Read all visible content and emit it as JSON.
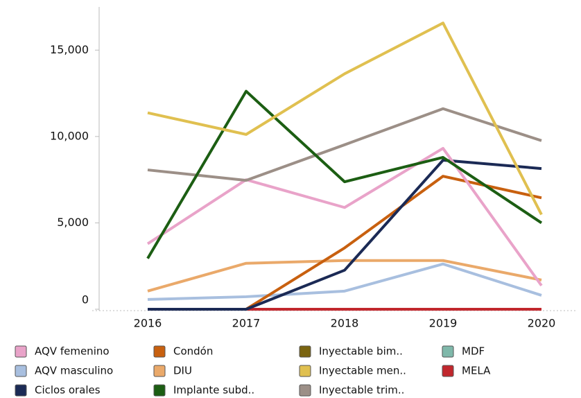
{
  "chart_data": {
    "type": "line",
    "categories": [
      "2016",
      "2017",
      "2018",
      "2019",
      "2020"
    ],
    "ylim": [
      0,
      17500
    ],
    "yticks": [
      0,
      {
        "value": 5000,
        "label": "5,000"
      },
      {
        "value": 10000,
        "label": "10,000"
      },
      {
        "value": 15000,
        "label": "15,000"
      }
    ],
    "series": [
      {
        "name": "AQV femenino",
        "color": "#e9a3c9",
        "values": [
          3790,
          7500,
          5890,
          9315,
          1370
        ]
      },
      {
        "name": "AQV masculino",
        "color": "#a8bfdf",
        "values": [
          565,
          725,
          1050,
          2620,
          805
        ]
      },
      {
        "name": "Ciclos orales",
        "color": "#1b2a55",
        "values": [
          0,
          0,
          2260,
          8630,
          8145
        ]
      },
      {
        "name": "Condón",
        "color": "#c8600f",
        "values": [
          0,
          0,
          3550,
          7700,
          6450
        ]
      },
      {
        "name": "DIU",
        "color": "#eaa96a",
        "values": [
          1050,
          2660,
          2820,
          2820,
          1690
        ]
      },
      {
        "name": "Implante subd..",
        "color": "#1c5e13",
        "values": [
          2940,
          12620,
          7380,
          8790,
          5000
        ]
      },
      {
        "name": "Inyectable bim..",
        "color": "#7a6410",
        "values": [
          0,
          0,
          0,
          0,
          0
        ]
      },
      {
        "name": "Inyectable men..",
        "color": "#e0c050",
        "values": [
          11370,
          10120,
          13630,
          16570,
          5480
        ]
      },
      {
        "name": "Inyectable trim..",
        "color": "#9c8f87",
        "values": [
          8065,
          7460,
          9520,
          11610,
          9760
        ]
      },
      {
        "name": "MDF",
        "color": "#7fb8aa",
        "values": [
          0,
          0,
          0,
          0,
          0
        ]
      },
      {
        "name": "MELA",
        "color": "#c1272d",
        "values": [
          0,
          0,
          0,
          0,
          0
        ]
      }
    ]
  }
}
